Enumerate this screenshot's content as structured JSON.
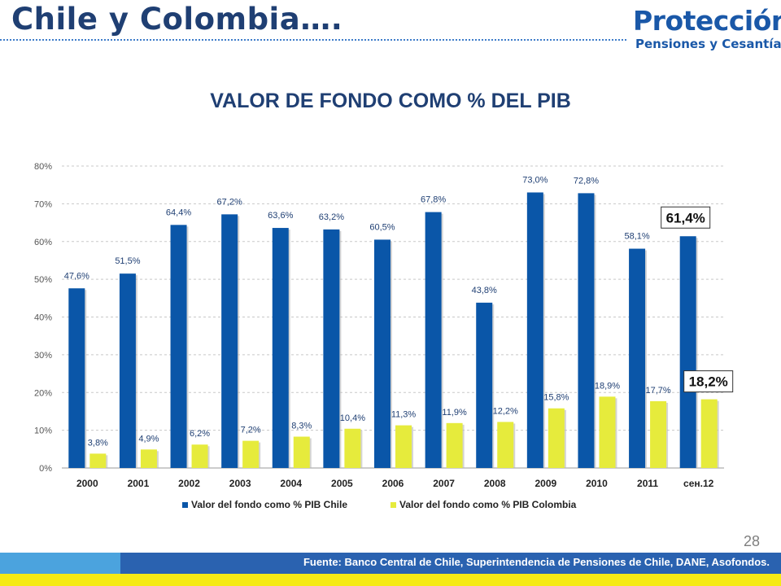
{
  "slide": {
    "title": "Chile y Colombia….",
    "logo_name": "Protección",
    "logo_sub": "Pensiones y Cesantías",
    "page_number": "28",
    "source": "Fuente: Banco Central de Chile, Superintendencia de Pensiones de Chile, DANE, Asofondos."
  },
  "colors": {
    "chile": "#0a56a8",
    "colombia": "#e6eb3c",
    "title": "#1f3f73",
    "footer_dark": "#2a62b0",
    "footer_light": "#4ba3de",
    "footer_yellow": "#f5ea15"
  },
  "chart_data": {
    "type": "bar",
    "title": "VALOR DE FONDO COMO % DEL PIB",
    "categories": [
      "2000",
      "2001",
      "2002",
      "2003",
      "2004",
      "2005",
      "2006",
      "2007",
      "2008",
      "2009",
      "2010",
      "2011",
      "сен.12"
    ],
    "series": [
      {
        "name": "Valor del fondo como % PIB Chile",
        "values": [
          47.6,
          51.5,
          64.4,
          67.2,
          63.6,
          63.2,
          60.5,
          67.8,
          43.8,
          73.0,
          72.8,
          58.1,
          61.4
        ],
        "labels": [
          "47,6%",
          "51,5%",
          "64,4%",
          "67,2%",
          "63,6%",
          "63,2%",
          "60,5%",
          "67,8%",
          "43,8%",
          "73,0%",
          "72,8%",
          "58,1%",
          "61,4%"
        ]
      },
      {
        "name": "Valor del fondo como % PIB Colombia",
        "values": [
          3.8,
          4.9,
          6.2,
          7.2,
          8.3,
          10.4,
          11.3,
          11.9,
          12.2,
          15.8,
          18.9,
          17.7,
          18.2
        ],
        "labels": [
          "3,8%",
          "4,9%",
          "6,2%",
          "7,2%",
          "8,3%",
          "10,4%",
          "11,3%",
          "11,9%",
          "12,2%",
          "15,8%",
          "18,9%",
          "17,7%",
          "18,2%"
        ]
      }
    ],
    "ylim": [
      0,
      80
    ],
    "yticks": [
      0,
      10,
      20,
      30,
      40,
      50,
      60,
      70,
      80
    ],
    "ytick_labels": [
      "0%",
      "10%",
      "20%",
      "30%",
      "40%",
      "50%",
      "60%",
      "70%",
      "80%"
    ],
    "highlight": [
      "61,4%",
      "18,2%"
    ],
    "grid": true,
    "legend": "bottom"
  }
}
